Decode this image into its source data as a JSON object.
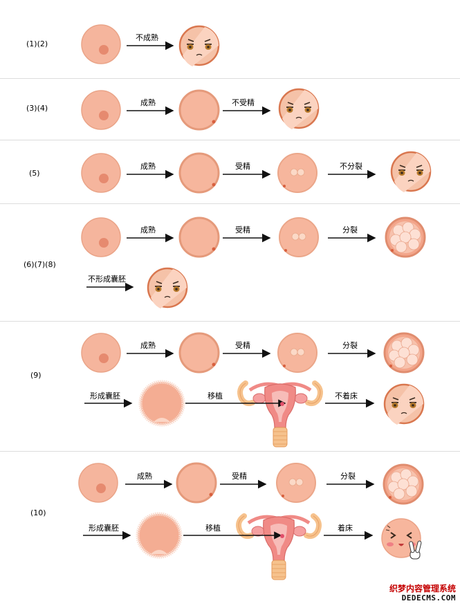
{
  "rows": [
    {
      "label": "(1)(2)"
    },
    {
      "label": "(3)(4)"
    },
    {
      "label": "(5)"
    },
    {
      "label": "(6)(7)(8)"
    },
    {
      "label": "(9)"
    },
    {
      "label": "(10)"
    }
  ],
  "steps": {
    "not_mature": "不成熟",
    "mature": "成熟",
    "not_fertilized": "不受精",
    "fertilized": "受精",
    "not_divide": "不分裂",
    "divide": "分裂",
    "no_blastocyst": "不形成囊胚",
    "form_blastocyst": "形成囊胚",
    "transfer": "移植",
    "no_implant": "不着床",
    "implant": "着床"
  },
  "watermark": {
    "cn": "织梦内容管理系统",
    "en": "DEDECMS.COM"
  },
  "colors": {
    "egg_fill": "#f5b59d",
    "egg_edge": "#e9a285",
    "nucleus": "#e68a6f",
    "sad_face_fill": "#f5c2a8",
    "sad_face_edge": "#d9774f",
    "arrow": "#111111",
    "uterus": "#f08a86",
    "tube": "#f6c28d",
    "watermark_red": "#c40000"
  }
}
